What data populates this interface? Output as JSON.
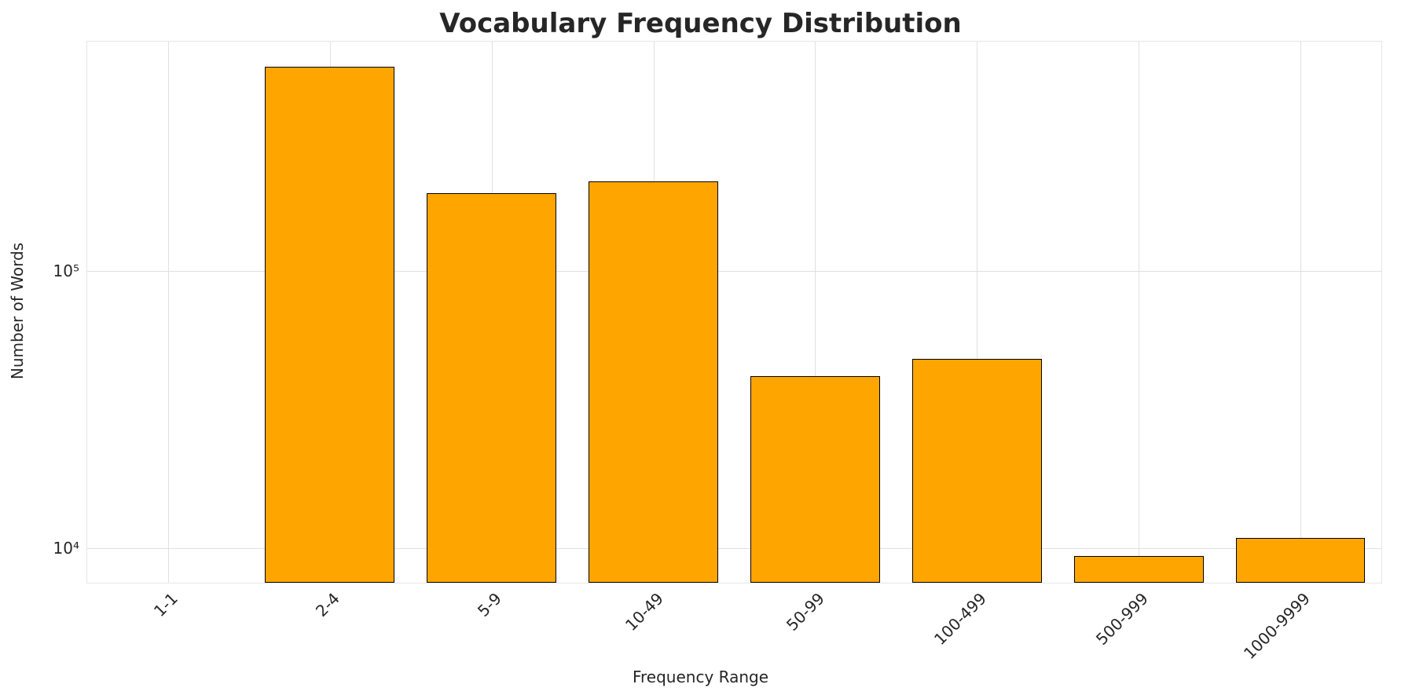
{
  "chart_data": {
    "type": "bar",
    "title": "Vocabulary Frequency Distribution",
    "xlabel": "Frequency Range",
    "ylabel": "Number of Words",
    "categories": [
      "1-1",
      "2-4",
      "5-9",
      "10-49",
      "50-99",
      "100-499",
      "500-999",
      "1000-9999"
    ],
    "values": [
      0,
      545000,
      190000,
      210000,
      41700,
      48000,
      9350,
      10900
    ],
    "yscale": "log",
    "ylim": [
      7500,
      671000
    ],
    "yticks": [
      {
        "value": 10000,
        "label": "10⁴"
      },
      {
        "value": 100000,
        "label": "10⁵"
      }
    ],
    "grid": true,
    "legend": "none",
    "bar_color": "#FFA500",
    "bar_edge_color": "#000000",
    "grid_color": "#e0e0e0",
    "text_color": "#262626"
  }
}
